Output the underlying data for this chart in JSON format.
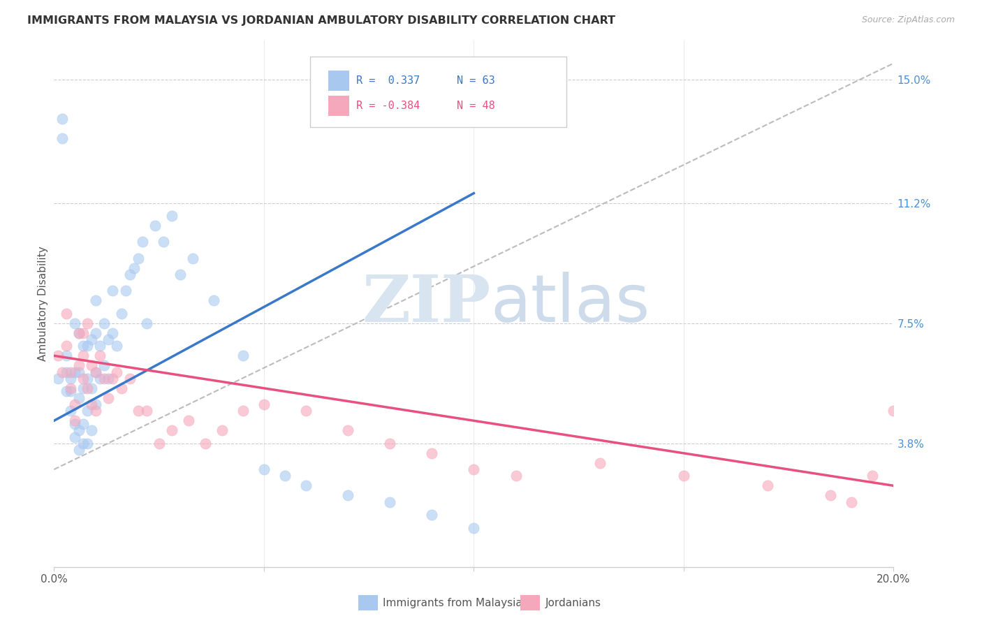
{
  "title": "IMMIGRANTS FROM MALAYSIA VS JORDANIAN AMBULATORY DISABILITY CORRELATION CHART",
  "source": "Source: ZipAtlas.com",
  "ylabel": "Ambulatory Disability",
  "yticks_right": [
    "15.0%",
    "11.2%",
    "7.5%",
    "3.8%"
  ],
  "yticks_right_vals": [
    0.15,
    0.112,
    0.075,
    0.038
  ],
  "legend_blue_label": "Immigrants from Malaysia",
  "legend_pink_label": "Jordanians",
  "legend_blue_r": "R =  0.337",
  "legend_blue_n": "N = 63",
  "legend_pink_r": "R = -0.384",
  "legend_pink_n": "N = 48",
  "blue_color": "#A8C8F0",
  "pink_color": "#F5A8BC",
  "blue_line_color": "#3A78C9",
  "pink_line_color": "#E85080",
  "dash_line_color": "#BBBBBB",
  "watermark_zip": "ZIP",
  "watermark_atlas": "atlas",
  "blue_points_x": [
    0.001,
    0.002,
    0.002,
    0.003,
    0.003,
    0.003,
    0.004,
    0.004,
    0.004,
    0.005,
    0.005,
    0.005,
    0.005,
    0.006,
    0.006,
    0.006,
    0.006,
    0.006,
    0.007,
    0.007,
    0.007,
    0.007,
    0.008,
    0.008,
    0.008,
    0.008,
    0.009,
    0.009,
    0.009,
    0.01,
    0.01,
    0.01,
    0.01,
    0.011,
    0.011,
    0.012,
    0.012,
    0.013,
    0.013,
    0.014,
    0.014,
    0.015,
    0.016,
    0.017,
    0.018,
    0.019,
    0.02,
    0.021,
    0.022,
    0.024,
    0.026,
    0.028,
    0.03,
    0.033,
    0.038,
    0.045,
    0.05,
    0.055,
    0.06,
    0.07,
    0.08,
    0.09,
    0.1
  ],
  "blue_points_y": [
    0.058,
    0.132,
    0.138,
    0.054,
    0.06,
    0.065,
    0.048,
    0.054,
    0.058,
    0.04,
    0.044,
    0.06,
    0.075,
    0.036,
    0.042,
    0.052,
    0.06,
    0.072,
    0.038,
    0.044,
    0.055,
    0.068,
    0.038,
    0.048,
    0.058,
    0.068,
    0.042,
    0.055,
    0.07,
    0.05,
    0.06,
    0.072,
    0.082,
    0.058,
    0.068,
    0.062,
    0.075,
    0.058,
    0.07,
    0.072,
    0.085,
    0.068,
    0.078,
    0.085,
    0.09,
    0.092,
    0.095,
    0.1,
    0.075,
    0.105,
    0.1,
    0.108,
    0.09,
    0.095,
    0.082,
    0.065,
    0.03,
    0.028,
    0.025,
    0.022,
    0.02,
    0.016,
    0.012
  ],
  "pink_points_x": [
    0.001,
    0.002,
    0.003,
    0.003,
    0.004,
    0.004,
    0.005,
    0.005,
    0.006,
    0.006,
    0.007,
    0.007,
    0.007,
    0.008,
    0.008,
    0.009,
    0.009,
    0.01,
    0.01,
    0.011,
    0.012,
    0.013,
    0.014,
    0.015,
    0.016,
    0.018,
    0.02,
    0.022,
    0.025,
    0.028,
    0.032,
    0.036,
    0.04,
    0.045,
    0.05,
    0.06,
    0.07,
    0.08,
    0.09,
    0.1,
    0.11,
    0.13,
    0.15,
    0.17,
    0.185,
    0.19,
    0.195,
    0.2
  ],
  "pink_points_y": [
    0.065,
    0.06,
    0.078,
    0.068,
    0.06,
    0.055,
    0.05,
    0.045,
    0.062,
    0.072,
    0.058,
    0.065,
    0.072,
    0.055,
    0.075,
    0.05,
    0.062,
    0.048,
    0.06,
    0.065,
    0.058,
    0.052,
    0.058,
    0.06,
    0.055,
    0.058,
    0.048,
    0.048,
    0.038,
    0.042,
    0.045,
    0.038,
    0.042,
    0.048,
    0.05,
    0.048,
    0.042,
    0.038,
    0.035,
    0.03,
    0.028,
    0.032,
    0.028,
    0.025,
    0.022,
    0.02,
    0.028,
    0.048
  ],
  "xlim": [
    0,
    0.2
  ],
  "ylim": [
    0,
    0.162
  ],
  "blue_trend_x": [
    0.0,
    0.1
  ],
  "blue_trend_y": [
    0.045,
    0.115
  ],
  "pink_trend_x": [
    0.0,
    0.2
  ],
  "pink_trend_y": [
    0.065,
    0.025
  ],
  "dash_trend_x": [
    0.0,
    0.2
  ],
  "dash_trend_y": [
    0.03,
    0.155
  ]
}
